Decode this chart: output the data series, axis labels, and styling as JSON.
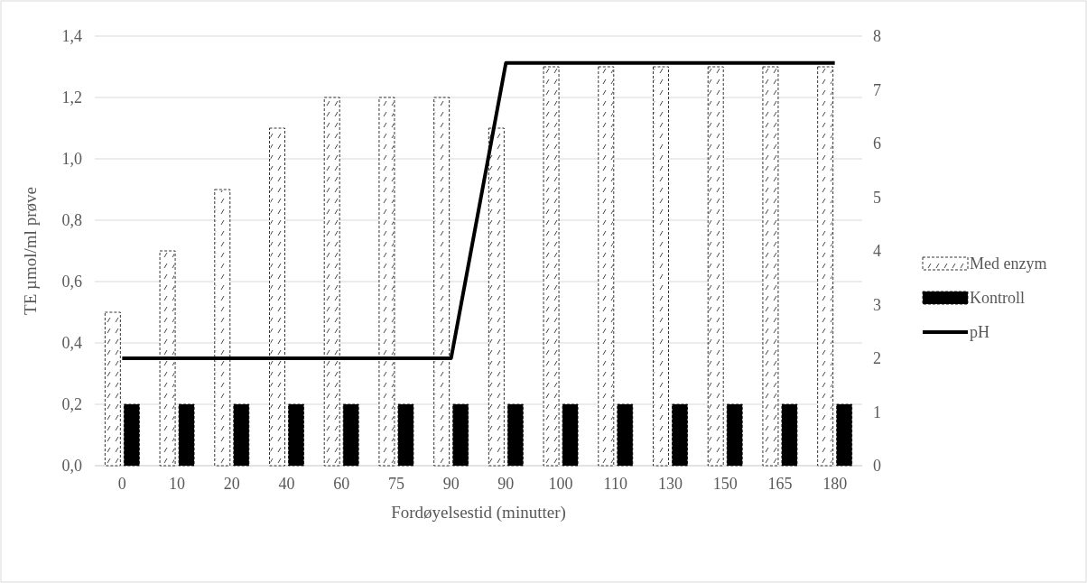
{
  "chart_data": {
    "type": "bar",
    "xlabel": "Fordøyelsestid (minutter)",
    "ylabel": "TE µmol/ml prøve",
    "categories": [
      "0",
      "10",
      "20",
      "40",
      "60",
      "75",
      "90",
      "90",
      "100",
      "110",
      "130",
      "150",
      "165",
      "180"
    ],
    "series": [
      {
        "name": "Med enzym",
        "color": "#ffffff",
        "values": [
          0.5,
          0.7,
          0.9,
          1.1,
          1.2,
          1.2,
          1.2,
          1.1,
          1.3,
          1.3,
          1.3,
          1.3,
          1.3,
          1.3
        ]
      },
      {
        "name": "Kontroll",
        "color": "#000000",
        "values": [
          0.2,
          0.2,
          0.2,
          0.2,
          0.2,
          0.2,
          0.2,
          0.2,
          0.2,
          0.2,
          0.2,
          0.2,
          0.2,
          0.2
        ]
      },
      {
        "name": "pH",
        "type": "line",
        "axis": "y2",
        "color": "#000000",
        "values": [
          2,
          2,
          2,
          2,
          2,
          2,
          2,
          7.5,
          7.5,
          7.5,
          7.5,
          7.5,
          7.5,
          7.5
        ]
      }
    ],
    "ylim": [
      0,
      1.4
    ],
    "yticks": [
      {
        "value": 0,
        "label": "0,0"
      },
      {
        "value": 0.2,
        "label": "0,2"
      },
      {
        "value": 0.4,
        "label": "0,4"
      },
      {
        "value": 0.6,
        "label": "0,6"
      },
      {
        "value": 0.8,
        "label": "0,8"
      },
      {
        "value": 1,
        "label": "1,0"
      },
      {
        "value": 1.2,
        "label": "1,2"
      },
      {
        "value": 1.4,
        "label": "1,4"
      }
    ],
    "y2lim": [
      0,
      8
    ],
    "y2ticks": [
      0,
      1,
      2,
      3,
      4,
      5,
      6,
      7,
      8
    ],
    "grid": "y",
    "legend": "right"
  }
}
